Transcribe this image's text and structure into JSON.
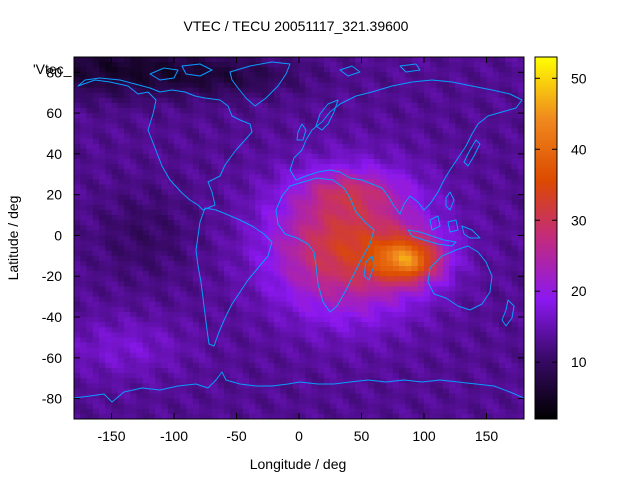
{
  "chart_data": {
    "type": "heatmap",
    "title": "VTEC / TECU 20051117_321.39600",
    "xlabel": "Longitude / deg",
    "ylabel": "Latitude / deg",
    "corner_label": "'Vtec_",
    "xlim": [
      -180,
      180
    ],
    "ylim": [
      -90,
      87.5
    ],
    "x_ticks": [
      {
        "value": -150,
        "label": "-150"
      },
      {
        "value": -100,
        "label": "-100"
      },
      {
        "value": -50,
        "label": "-50"
      },
      {
        "value": 0,
        "label": "0"
      },
      {
        "value": 50,
        "label": "50"
      },
      {
        "value": 100,
        "label": "100"
      },
      {
        "value": 150,
        "label": "150"
      }
    ],
    "y_ticks": [
      {
        "value": 80,
        "label": "80"
      },
      {
        "value": 60,
        "label": "60"
      },
      {
        "value": 40,
        "label": "40"
      },
      {
        "value": 20,
        "label": "20"
      },
      {
        "value": 0,
        "label": "0"
      },
      {
        "value": -20,
        "label": "-20"
      },
      {
        "value": -40,
        "label": "-40"
      },
      {
        "value": -60,
        "label": "-60"
      },
      {
        "value": -80,
        "label": "-80"
      }
    ],
    "colorbar": {
      "min": 2,
      "max": 53,
      "ticks": [
        {
          "value": 10,
          "label": "10"
        },
        {
          "value": 20,
          "label": "20"
        },
        {
          "value": 30,
          "label": "30"
        },
        {
          "value": 40,
          "label": "40"
        },
        {
          "value": 50,
          "label": "50"
        }
      ]
    },
    "field_model": {
      "background": 13,
      "sources": [
        {
          "lon": 40,
          "lat": -5,
          "amp": 20,
          "slon": 60,
          "slat": 32
        },
        {
          "lon": 88,
          "lat": -12,
          "amp": 22,
          "slon": 26,
          "slat": 11
        },
        {
          "lon": 40,
          "lat": 22,
          "amp": 7,
          "slon": 38,
          "slat": 9
        },
        {
          "lon": -150,
          "lat": 82,
          "amp": -7,
          "slon": 70,
          "slat": 14
        },
        {
          "lon": -60,
          "lat": 78,
          "amp": -5,
          "slon": 60,
          "slat": 10
        },
        {
          "lon": -125,
          "lat": 0,
          "amp": -3,
          "slon": 40,
          "slat": 22
        },
        {
          "lon": -140,
          "lat": -55,
          "amp": 4,
          "slon": 50,
          "slat": 15
        }
      ]
    },
    "colors": {
      "coastline": "#0a9cff",
      "axis": "#000000"
    }
  }
}
